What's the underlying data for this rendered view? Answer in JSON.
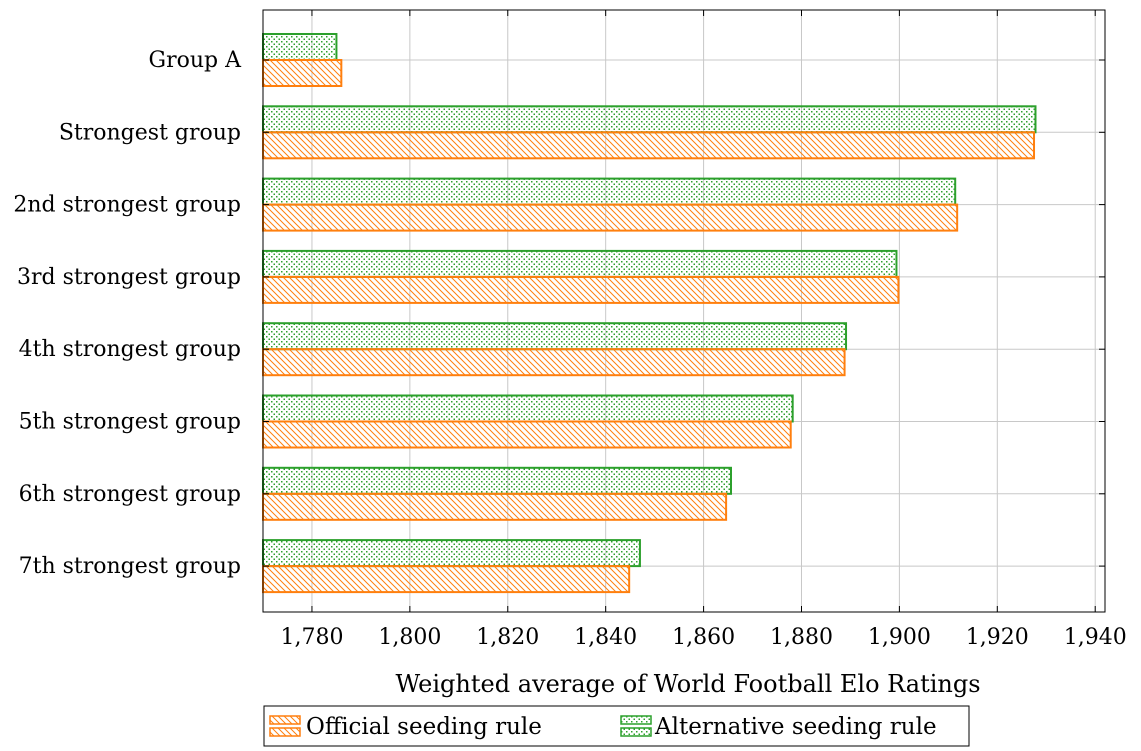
{
  "chart_data": {
    "type": "bar",
    "orientation": "horizontal",
    "categories": [
      "Group A",
      "Strongest group",
      "2nd strongest group",
      "3rd strongest group",
      "4th strongest group",
      "5th strongest group",
      "6th strongest group",
      "7th strongest group"
    ],
    "series": [
      {
        "name": "Official seeding rule",
        "values": [
          1786,
          1927.5,
          1911.8,
          1899.8,
          1888.8,
          1877.8,
          1864.6,
          1844.8
        ]
      },
      {
        "name": "Alternative seeding rule",
        "values": [
          1785,
          1927.8,
          1911.4,
          1899.4,
          1889.1,
          1878.2,
          1865.6,
          1847
        ]
      }
    ],
    "xlabel": "Weighted average of World Football Elo Ratings",
    "xlim": [
      1770,
      1942
    ],
    "xticks": [
      1780,
      1800,
      1820,
      1840,
      1860,
      1880,
      1900,
      1920,
      1940
    ],
    "xtick_labels": [
      "1,780",
      "1,800",
      "1,820",
      "1,840",
      "1,860",
      "1,880",
      "1,900",
      "1,920",
      "1,940"
    ],
    "grid": true,
    "legend_position": "bottom-center",
    "colors": {
      "official": "#ff7f0e",
      "alternative": "#2ca02c"
    }
  }
}
